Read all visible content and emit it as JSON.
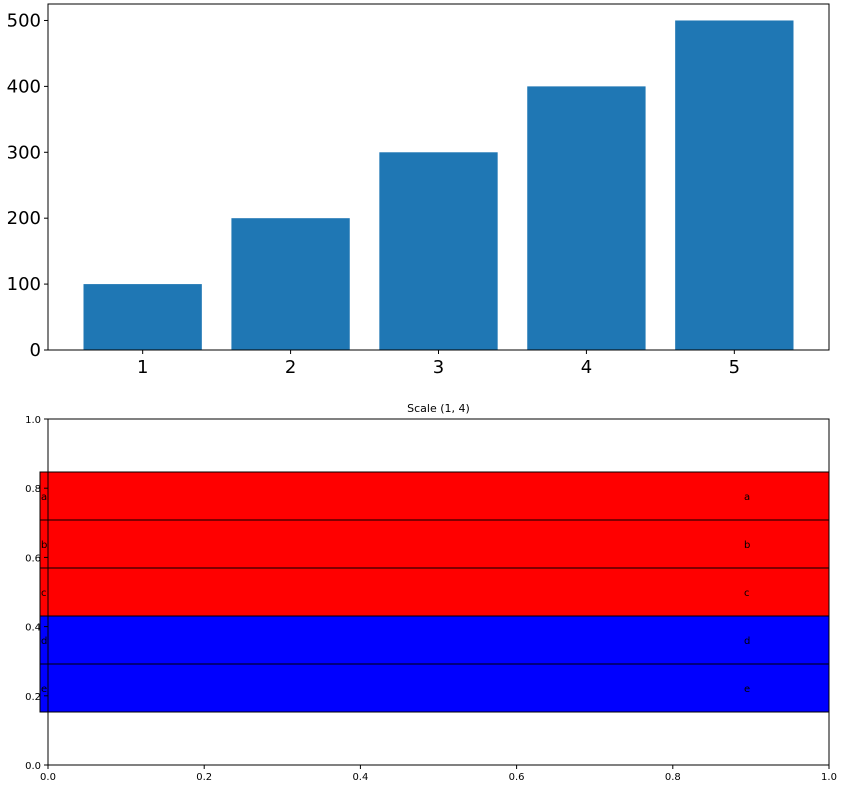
{
  "chart_data": [
    {
      "type": "bar",
      "title": "",
      "xlabel": "",
      "ylabel": "",
      "categories": [
        "1",
        "2",
        "3",
        "4",
        "5"
      ],
      "x": [
        1,
        2,
        3,
        4,
        5
      ],
      "values": [
        100,
        200,
        300,
        400,
        500
      ],
      "color": "#1f77b4",
      "xlim": [
        0.36,
        5.64
      ],
      "ylim": [
        0,
        525
      ],
      "xticks": [
        "1",
        "2",
        "3",
        "4",
        "5"
      ],
      "yticks": [
        "0",
        "100",
        "200",
        "300",
        "400",
        "500"
      ]
    },
    {
      "type": "table",
      "title": "Scale (1, 4)",
      "xlim": [
        0,
        1
      ],
      "ylim": [
        0,
        1
      ],
      "xticks": [
        "0.0",
        "0.2",
        "0.4",
        "0.6",
        "0.8",
        "1.0"
      ],
      "yticks": [
        "0.0",
        "0.2",
        "0.4",
        "0.6",
        "0.8",
        "1.0"
      ],
      "rows": [
        {
          "label": "a",
          "value": "a",
          "color": "#ff0000"
        },
        {
          "label": "b",
          "value": "b",
          "color": "#ff0000"
        },
        {
          "label": "c",
          "value": "c",
          "color": "#ff0000"
        },
        {
          "label": "d",
          "value": "d",
          "color": "#0000ff"
        },
        {
          "label": "e",
          "value": "e",
          "color": "#0000ff"
        }
      ]
    }
  ]
}
